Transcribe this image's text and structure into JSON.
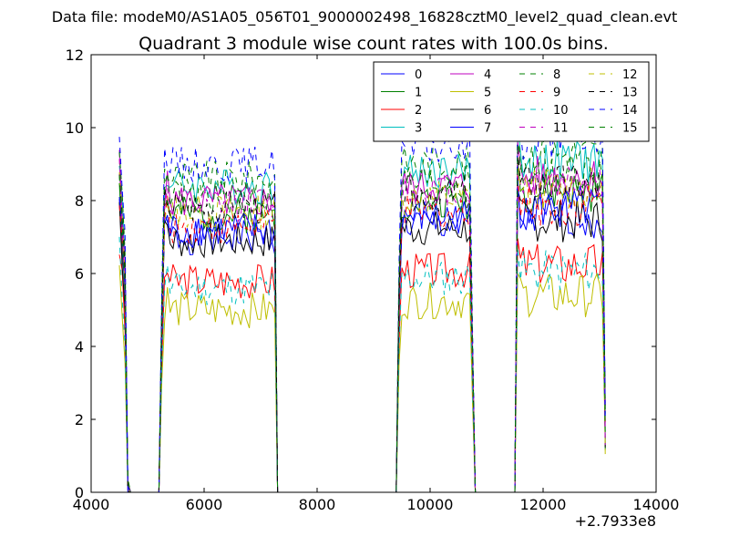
{
  "chart_data": {
    "type": "line",
    "suptitle": "Data file: modeM0/AS1A05_056T01_9000002498_16828cztM0_level2_quad_clean.evt",
    "title": "Quadrant 3 module wise count rates with 100.0s bins.",
    "xlabel": "",
    "ylabel": "",
    "x_offset_label": "+2.7933e8",
    "xlim": [
      4000,
      14000
    ],
    "ylim": [
      0,
      12
    ],
    "xticks": [
      4000,
      6000,
      8000,
      10000,
      12000,
      14000
    ],
    "yticks": [
      0,
      2,
      4,
      6,
      8,
      10,
      12
    ],
    "grid": false,
    "legend_placement": "top-right",
    "series": [
      {
        "name": "0",
        "color": "#0000ff",
        "dash": "solid",
        "base": 7.0,
        "seed": 1
      },
      {
        "name": "1",
        "color": "#008000",
        "dash": "solid",
        "base": 7.6,
        "seed": 2
      },
      {
        "name": "2",
        "color": "#ff0000",
        "dash": "solid",
        "base": 5.8,
        "seed": 3
      },
      {
        "name": "3",
        "color": "#00bfbf",
        "dash": "solid",
        "base": 8.4,
        "seed": 4
      },
      {
        "name": "4",
        "color": "#bf00bf",
        "dash": "solid",
        "base": 8.0,
        "seed": 5
      },
      {
        "name": "5",
        "color": "#bfbf00",
        "dash": "solid",
        "base": 5.0,
        "seed": 6
      },
      {
        "name": "6",
        "color": "#000000",
        "dash": "solid",
        "base": 6.9,
        "seed": 7
      },
      {
        "name": "7",
        "color": "#0000ff",
        "dash": "solid",
        "base": 7.2,
        "seed": 8
      },
      {
        "name": "8",
        "color": "#008000",
        "dash": "dashed",
        "base": 8.6,
        "seed": 9
      },
      {
        "name": "9",
        "color": "#ff0000",
        "dash": "dashed",
        "base": 7.3,
        "seed": 10
      },
      {
        "name": "10",
        "color": "#00bfbf",
        "dash": "dashed",
        "base": 5.6,
        "seed": 11
      },
      {
        "name": "11",
        "color": "#bf00bf",
        "dash": "dashed",
        "base": 7.9,
        "seed": 12
      },
      {
        "name": "12",
        "color": "#bfbf00",
        "dash": "dashed",
        "base": 7.7,
        "seed": 13
      },
      {
        "name": "13",
        "color": "#000000",
        "dash": "dashed",
        "base": 7.8,
        "seed": 14
      },
      {
        "name": "14",
        "color": "#0000ff",
        "dash": "dashed",
        "base": 9.0,
        "seed": 15
      },
      {
        "name": "15",
        "color": "#008000",
        "dash": "dashed",
        "base": 8.1,
        "seed": 16
      }
    ],
    "segments": [
      {
        "start": 4500,
        "end": 4700,
        "type": "spike"
      },
      {
        "start": 5200,
        "end": 7300,
        "type": "block"
      },
      {
        "start": 9400,
        "end": 10800,
        "type": "block"
      },
      {
        "start": 11500,
        "end": 13100,
        "type": "block"
      }
    ]
  }
}
